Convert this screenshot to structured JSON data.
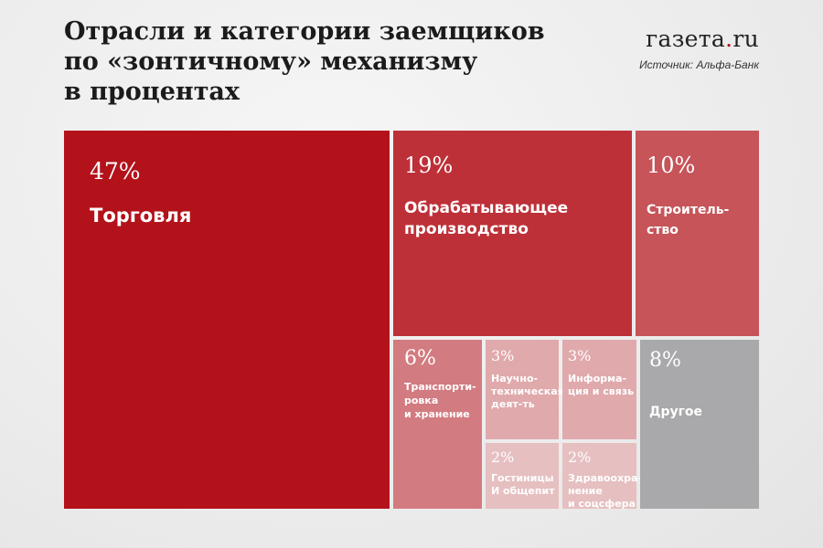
{
  "header": {
    "title_lines": [
      "Отрасли и категории заемщиков",
      "по «зонтичному» механизму",
      "в процентах"
    ],
    "logo_main": "газета",
    "logo_dot": ".",
    "logo_tld": "ru",
    "source": "Источник: Альфа-Банк"
  },
  "chart_data": {
    "type": "treemap",
    "unit": "%",
    "items": [
      {
        "id": "trade",
        "label_lines": [
          "Торговля"
        ],
        "value_label": "47%",
        "value": 47,
        "color": "#b3121b"
      },
      {
        "id": "manufacturing",
        "label_lines": [
          "Обрабатывающее",
          "производство"
        ],
        "value_label": "19%",
        "value": 19,
        "color": "#be3038"
      },
      {
        "id": "construction",
        "label_lines": [
          "Строитель-",
          "ство"
        ],
        "value_label": "10%",
        "value": 10,
        "color": "#c65459"
      },
      {
        "id": "transport",
        "label_lines": [
          "Транспорти-",
          "ровка",
          "и хранение"
        ],
        "value_label": "6%",
        "value": 6,
        "color": "#d27b80"
      },
      {
        "id": "science",
        "label_lines": [
          "Научно-",
          "техническая",
          "деят-ть"
        ],
        "value_label": "3%",
        "value": 3,
        "color": "#e0a9ac"
      },
      {
        "id": "it",
        "label_lines": [
          "Информа-",
          "ция и связь"
        ],
        "value_label": "3%",
        "value": 3,
        "color": "#e0a9ac"
      },
      {
        "id": "hotels",
        "label_lines": [
          "Гостиницы",
          "И общепит"
        ],
        "value_label": "2%",
        "value": 2,
        "color": "#e6bfc1"
      },
      {
        "id": "health",
        "label_lines": [
          "Здравоохра-",
          "нение",
          "и соцсфера"
        ],
        "value_label": "2%",
        "value": 2,
        "color": "#e6bfc1"
      },
      {
        "id": "other",
        "label_lines": [
          "Другое"
        ],
        "value_label": "8%",
        "value": 8,
        "color": "#a9a9ab"
      }
    ]
  }
}
